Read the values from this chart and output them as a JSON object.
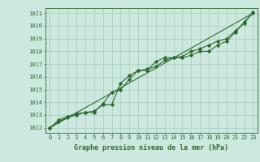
{
  "line1_x": [
    0,
    1,
    2,
    3,
    4,
    5,
    6,
    7,
    8,
    9,
    10,
    11,
    12,
    13,
    14,
    15,
    16,
    17,
    18,
    19,
    20,
    21,
    22,
    23
  ],
  "line1_y": [
    1012.0,
    1012.6,
    1012.9,
    1013.1,
    1013.2,
    1013.3,
    1013.8,
    1013.8,
    1015.5,
    1016.1,
    1016.5,
    1016.5,
    1017.2,
    1017.5,
    1017.5,
    1017.5,
    1017.7,
    1018.0,
    1018.0,
    1018.5,
    1018.8,
    1019.5,
    1020.3,
    1021.0
  ],
  "line2_x": [
    0,
    1,
    2,
    3,
    4,
    5,
    6,
    7,
    8,
    9,
    10,
    11,
    12,
    13,
    14,
    15,
    16,
    17,
    18,
    19,
    20,
    21,
    22,
    23
  ],
  "line2_y": [
    1012.0,
    1012.5,
    1012.8,
    1013.0,
    1013.2,
    1013.2,
    1013.9,
    1014.8,
    1015.0,
    1015.8,
    1016.5,
    1016.6,
    1016.8,
    1017.3,
    1017.5,
    1017.6,
    1018.0,
    1018.2,
    1018.5,
    1018.8,
    1019.0,
    1019.6,
    1020.2,
    1021.1
  ],
  "line3_x": [
    0,
    23
  ],
  "line3_y": [
    1012.0,
    1021.0
  ],
  "line_color": "#2d6a2d",
  "bg_color": "#cce8df",
  "grid_color": "#a8ccbf",
  "xlabel": "Graphe pression niveau de la mer (hPa)",
  "ylim": [
    1011.6,
    1021.4
  ],
  "xlim": [
    -0.5,
    23.5
  ],
  "yticks": [
    1012,
    1013,
    1014,
    1015,
    1016,
    1017,
    1018,
    1019,
    1020,
    1021
  ],
  "xticks": [
    0,
    1,
    2,
    3,
    4,
    5,
    6,
    7,
    8,
    9,
    10,
    11,
    12,
    13,
    14,
    15,
    16,
    17,
    18,
    19,
    20,
    21,
    22,
    23
  ],
  "tick_fontsize": 5.0,
  "xlabel_fontsize": 6.0
}
